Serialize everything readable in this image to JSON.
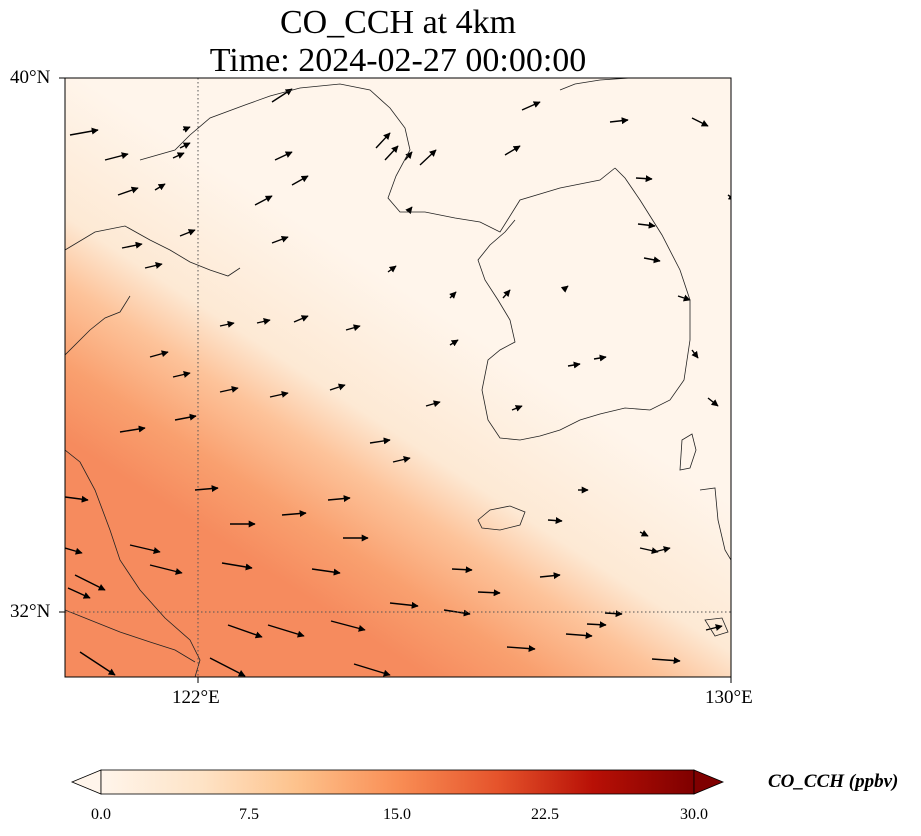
{
  "title": {
    "line1": "CO_CCH at 4km",
    "line2": "Time: 2024-02-27 00:00:00"
  },
  "map": {
    "variable": "CO_CCH",
    "height": "4km",
    "lon_range": [
      119.8,
      130
    ],
    "lat_range": [
      31,
      40.2
    ],
    "lat_ticks": [
      "40°N",
      "32°N"
    ],
    "lon_ticks": [
      "122°E",
      "130°E"
    ],
    "gridlines": "dotted at 122°E and 32°N",
    "field_description_colors": {
      "low": "#fff5eb",
      "mid": "#fdc590",
      "high": "#f7895a"
    },
    "wind_vectors_present": true
  },
  "colorbar": {
    "label": "CO_CCH (ppbv)",
    "ticks": [
      "0.0",
      "7.5",
      "15.0",
      "22.5",
      "30.0"
    ],
    "range": [
      0,
      30
    ],
    "colormap": "Oranges-Red",
    "colors": [
      "#fff5eb",
      "#fdd9b5",
      "#fdb97d",
      "#f68c54",
      "#e2492b",
      "#b00d04",
      "#7f0000"
    ],
    "extend": "both"
  }
}
